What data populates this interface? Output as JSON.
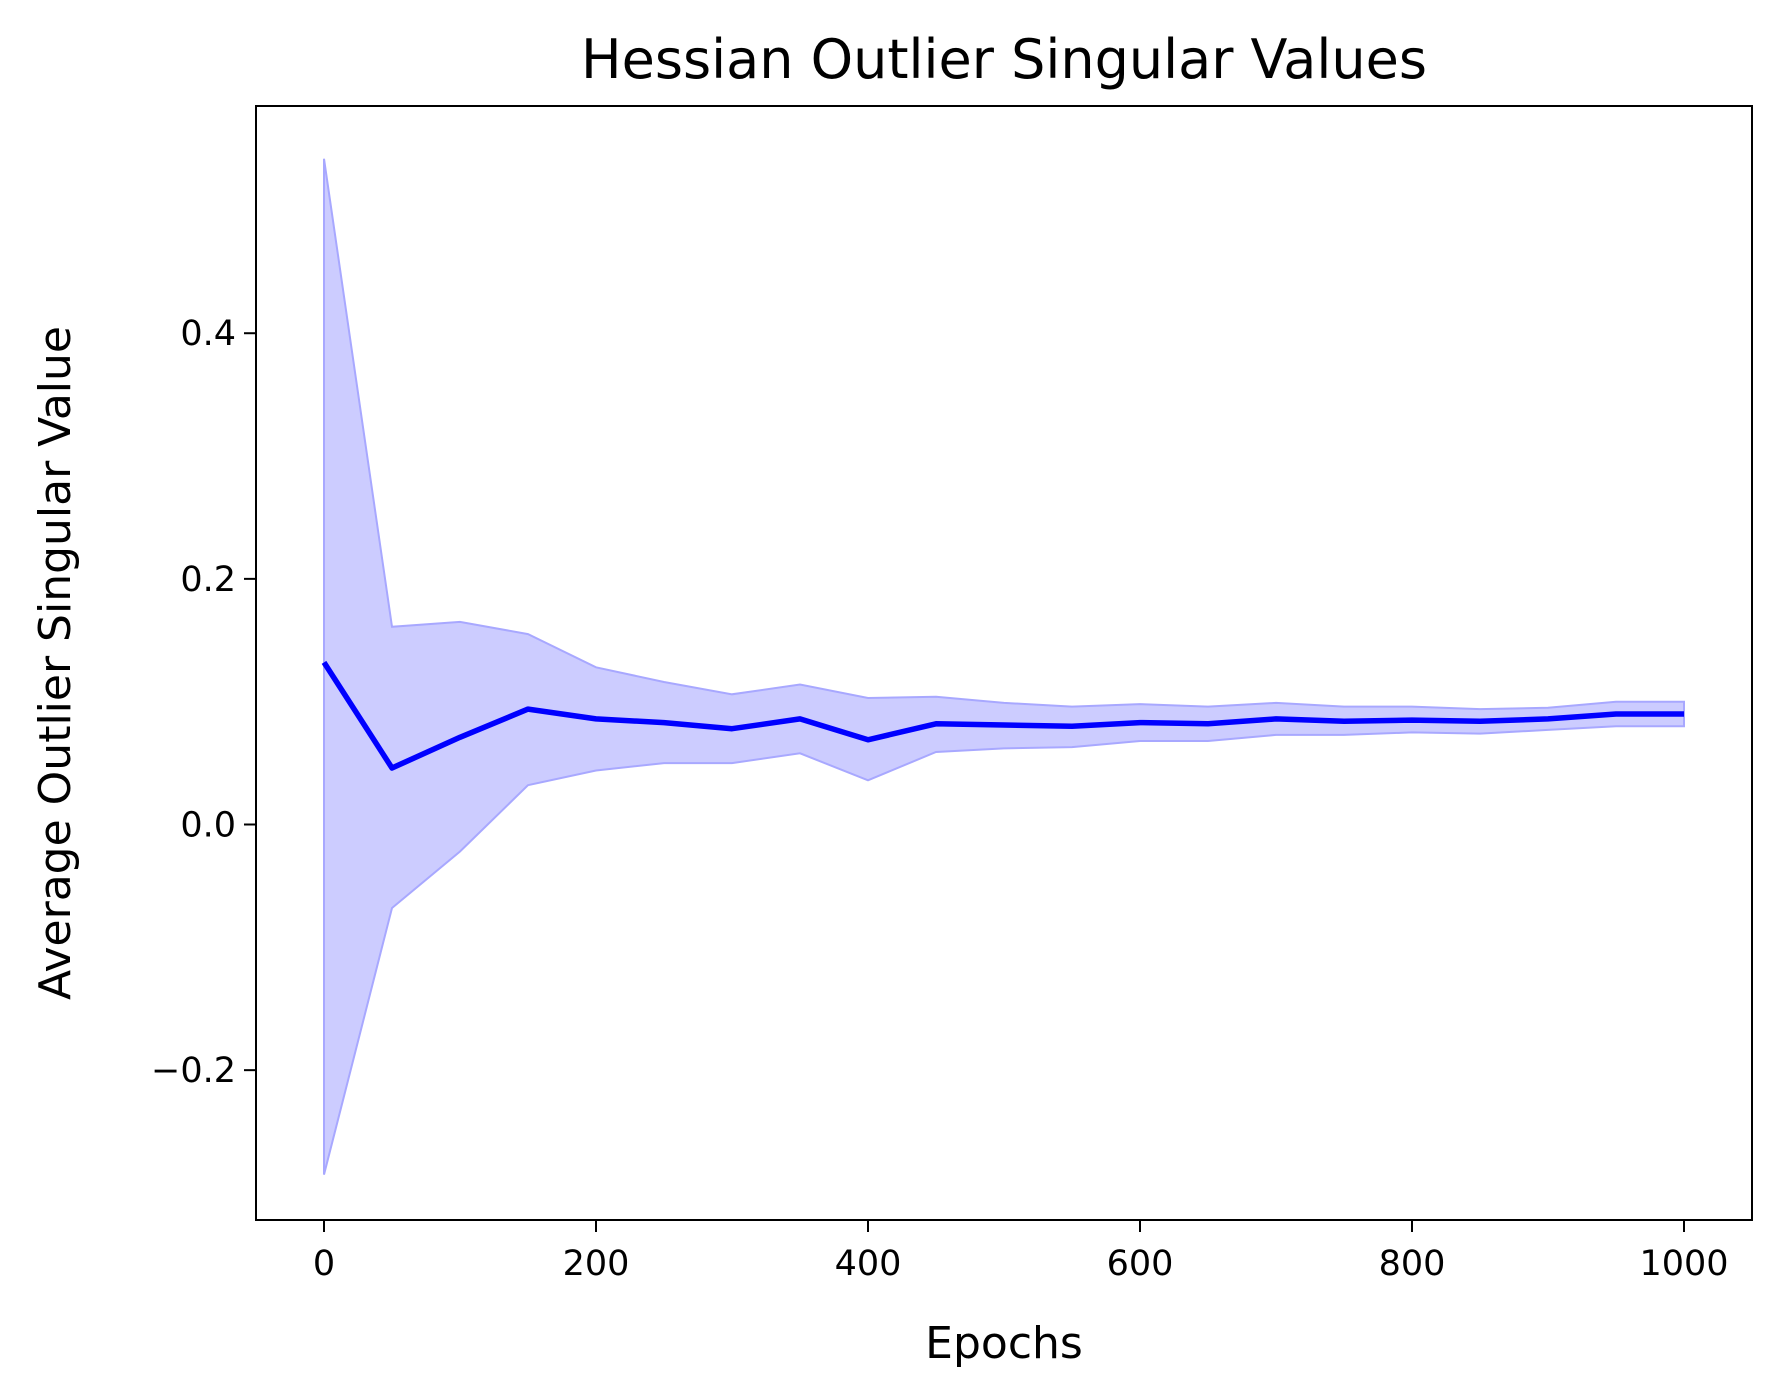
{
  "chart_data": {
    "type": "line",
    "title": "Hessian Outlier Singular Values",
    "xlabel": "Epochs",
    "ylabel": "Average Outlier Singular Value",
    "xlim": [
      -50,
      1050
    ],
    "ylim": [
      -0.322,
      0.585
    ],
    "xticks": [
      0,
      200,
      400,
      600,
      800,
      1000
    ],
    "xtick_labels": [
      "0",
      "200",
      "400",
      "600",
      "800",
      "1000"
    ],
    "yticks": [
      -0.2,
      0.0,
      0.2,
      0.4
    ],
    "ytick_labels": [
      "−0.2",
      "0.0",
      "0.2",
      "0.4"
    ],
    "grid": false,
    "legend": "none",
    "colors": {
      "line": "#0000ff",
      "band_fill": "#ccccff",
      "band_edge": "#a8a8ff"
    },
    "series": [
      {
        "x": [
          0,
          50,
          100,
          150,
          200,
          250,
          300,
          350,
          400,
          450,
          500,
          550,
          600,
          650,
          700,
          750,
          800,
          850,
          900,
          950,
          1000
        ],
        "y": [
          0.132,
          0.046,
          0.071,
          0.094,
          0.086,
          0.083,
          0.078,
          0.086,
          0.069,
          0.082,
          0.081,
          0.08,
          0.083,
          0.082,
          0.086,
          0.084,
          0.085,
          0.084,
          0.086,
          0.09,
          0.09
        ],
        "lower": [
          -0.285,
          -0.068,
          -0.022,
          0.032,
          0.044,
          0.05,
          0.05,
          0.058,
          0.036,
          0.059,
          0.062,
          0.063,
          0.068,
          0.068,
          0.073,
          0.073,
          0.075,
          0.074,
          0.077,
          0.08,
          0.08
        ],
        "upper": [
          0.542,
          0.161,
          0.165,
          0.155,
          0.128,
          0.116,
          0.106,
          0.114,
          0.103,
          0.104,
          0.099,
          0.096,
          0.098,
          0.096,
          0.099,
          0.096,
          0.096,
          0.094,
          0.095,
          0.1,
          0.1
        ]
      }
    ]
  }
}
